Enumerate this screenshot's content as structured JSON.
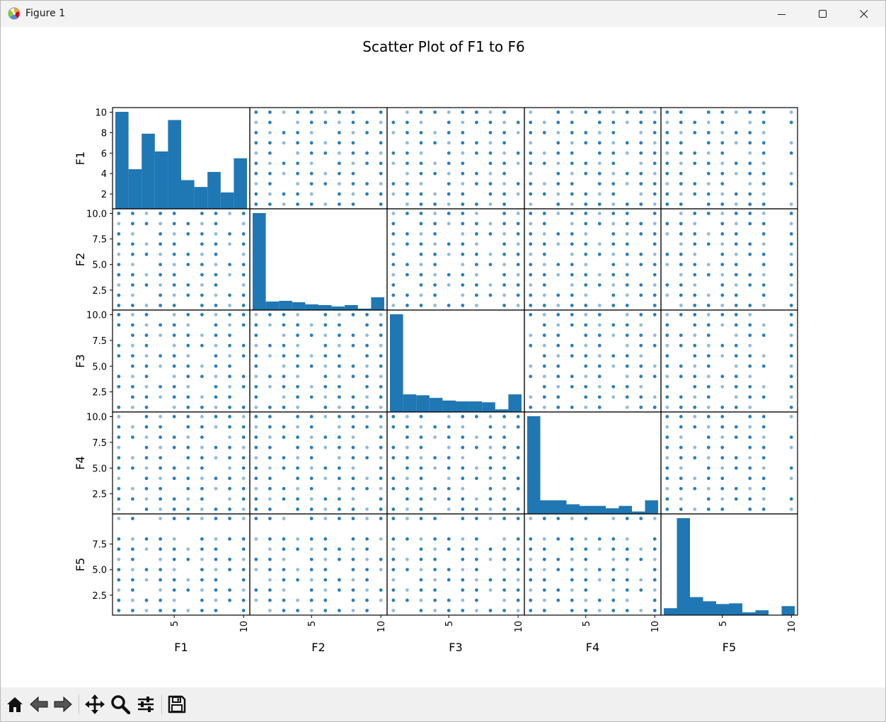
{
  "window": {
    "title": "Figure 1",
    "controls": {
      "minimize_icon": "minimize-icon",
      "maximize_icon": "maximize-icon",
      "close_icon": "close-icon"
    }
  },
  "toolbar": {
    "buttons": [
      {
        "name": "home-button",
        "icon": "home-icon"
      },
      {
        "name": "back-button",
        "icon": "arrow-left-icon"
      },
      {
        "name": "forward-button",
        "icon": "arrow-right-icon"
      },
      {
        "name": "pan-button",
        "icon": "move-icon"
      },
      {
        "name": "zoom-button",
        "icon": "magnifier-icon"
      },
      {
        "name": "configure-subplots-button",
        "icon": "sliders-icon"
      },
      {
        "name": "save-button",
        "icon": "floppy-disk-icon"
      }
    ]
  },
  "colors": {
    "series": "#1f77b4",
    "axes": "#000000"
  },
  "chart_data": {
    "type": "scatter",
    "title": "Scatter Plot of F1 to F6",
    "variables": [
      "F1",
      "F2",
      "F3",
      "F4",
      "F5"
    ],
    "axis_range": [
      0.55,
      10.45
    ],
    "x_ticks": [
      5,
      10
    ],
    "y_ticks_by_row": [
      {
        "values": [
          2,
          4,
          6,
          8,
          10
        ],
        "labels": [
          "2",
          "4",
          "6",
          "8",
          "10"
        ]
      },
      {
        "values": [
          2.5,
          5.0,
          7.5,
          10.0
        ],
        "labels": [
          "2.5",
          "5.0",
          "7.5",
          "10.0"
        ]
      },
      {
        "values": [
          2.5,
          5.0,
          7.5,
          10.0
        ],
        "labels": [
          "2.5",
          "5.0",
          "7.5",
          "10.0"
        ]
      },
      {
        "values": [
          2.5,
          5.0,
          7.5,
          10.0
        ],
        "labels": [
          "2.5",
          "5.0",
          "7.5",
          "10.0"
        ]
      },
      {
        "values": [
          2.5,
          5.0,
          7.5
        ],
        "labels": [
          "2.5",
          "5.0",
          "7.5"
        ]
      }
    ],
    "diagonal_histograms": {
      "bins": 10,
      "bin_range": [
        1,
        10
      ],
      "F1": [
        71,
        29,
        55,
        42,
        65,
        21,
        16,
        27,
        12,
        37
      ],
      "F2": [
        137,
        12,
        13,
        11,
        8,
        7,
        5,
        7,
        2,
        18
      ],
      "F3": [
        111,
        20,
        19,
        16,
        13,
        12,
        12,
        11,
        3,
        20
      ],
      "F4": [
        122,
        17,
        17,
        12,
        10,
        10,
        7,
        10,
        3,
        17
      ],
      "F5": [
        10,
        140,
        26,
        20,
        16,
        17,
        4,
        7,
        0,
        13
      ]
    },
    "scatter_fill": {
      "F1": [
        1,
        2,
        3,
        4,
        5,
        6,
        7,
        8,
        9,
        10
      ],
      "F2": [
        1,
        2,
        3,
        4,
        5,
        6,
        7,
        8,
        9,
        10
      ],
      "F3": [
        1,
        2,
        3,
        4,
        5,
        6,
        7,
        8,
        9,
        10
      ],
      "F4": [
        1,
        2,
        3,
        4,
        5,
        6,
        7,
        8,
        9,
        10
      ],
      "F5": [
        1,
        2,
        3,
        4,
        5,
        6,
        7,
        8,
        10
      ]
    },
    "alpha": 0.5
  }
}
